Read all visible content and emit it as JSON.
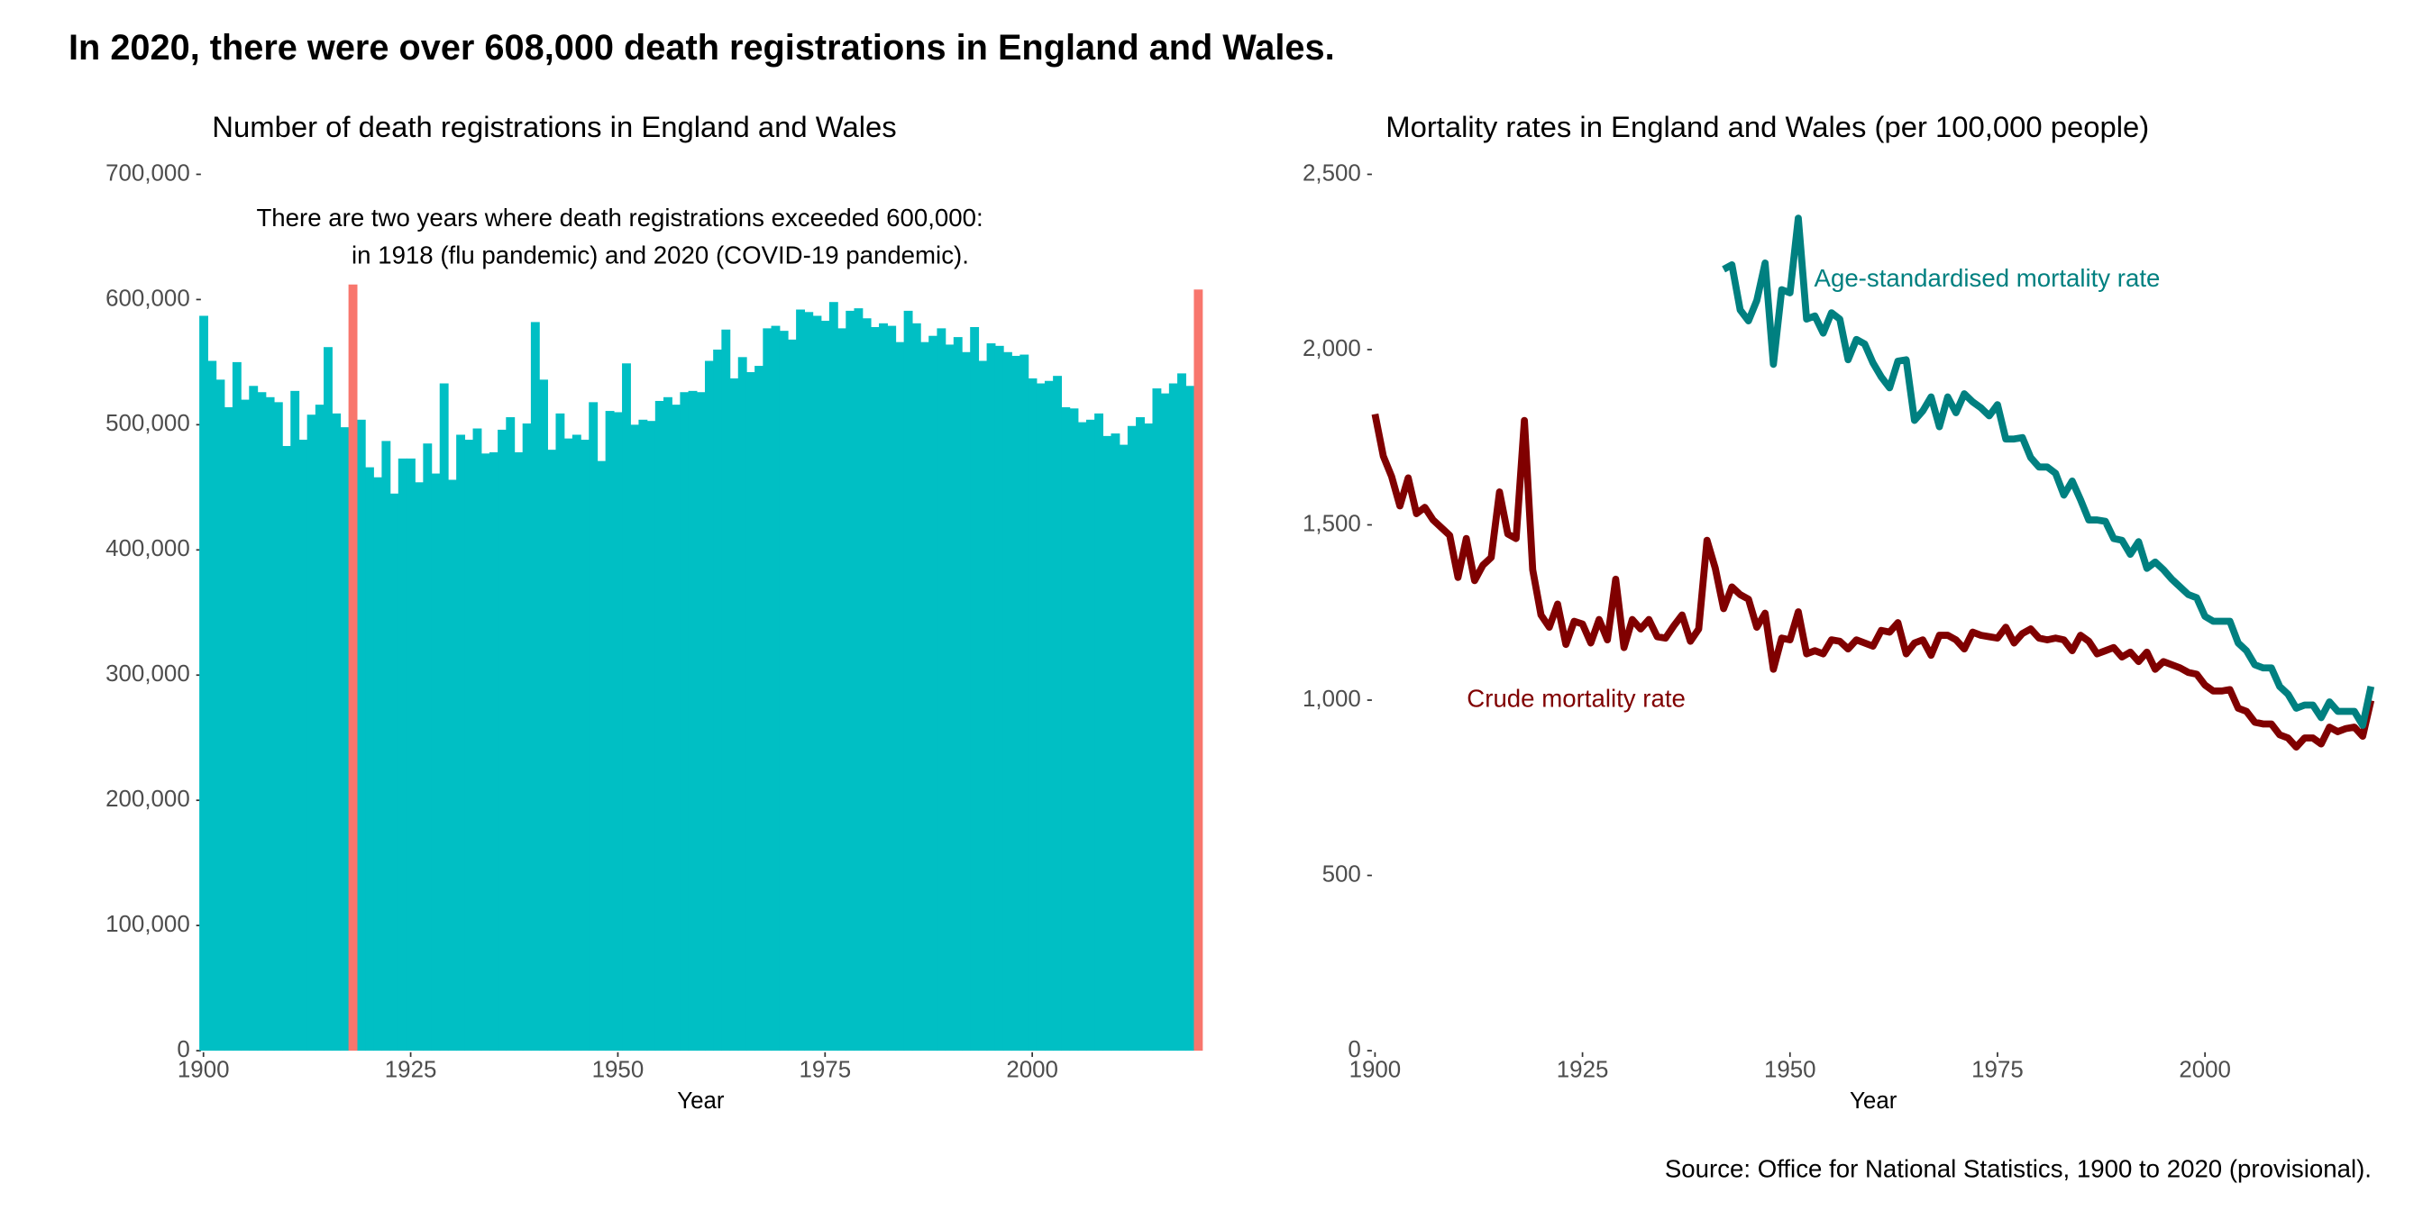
{
  "title": "In 2020, there were over 608,000 death registrations in England and Wales.",
  "source": "Source: Office for National Statistics, 1900 to 2020 (provisional).",
  "chart_data": [
    {
      "type": "bar",
      "title": "Number of death registrations in England and Wales",
      "annotation": [
        "There are two years where death registrations exceeded 600,000:",
        "in 1918 (flu pandemic) and 2020 (COVID-19 pandemic)."
      ],
      "xlabel": "Year",
      "x": [
        1900,
        1901,
        1902,
        1903,
        1904,
        1905,
        1906,
        1907,
        1908,
        1909,
        1910,
        1911,
        1912,
        1913,
        1914,
        1915,
        1916,
        1917,
        1918,
        1919,
        1920,
        1921,
        1922,
        1923,
        1924,
        1925,
        1926,
        1927,
        1928,
        1929,
        1930,
        1931,
        1932,
        1933,
        1934,
        1935,
        1936,
        1937,
        1938,
        1939,
        1940,
        1941,
        1942,
        1943,
        1944,
        1945,
        1946,
        1947,
        1948,
        1949,
        1950,
        1951,
        1952,
        1953,
        1954,
        1955,
        1956,
        1957,
        1958,
        1959,
        1960,
        1961,
        1962,
        1963,
        1964,
        1965,
        1966,
        1967,
        1968,
        1969,
        1970,
        1971,
        1972,
        1973,
        1974,
        1975,
        1976,
        1977,
        1978,
        1979,
        1980,
        1981,
        1982,
        1983,
        1984,
        1985,
        1986,
        1987,
        1988,
        1989,
        1990,
        1991,
        1992,
        1993,
        1994,
        1995,
        1996,
        1997,
        1998,
        1999,
        2000,
        2001,
        2002,
        2003,
        2004,
        2005,
        2006,
        2007,
        2008,
        2009,
        2010,
        2011,
        2012,
        2013,
        2014,
        2015,
        2016,
        2017,
        2018,
        2019,
        2020
      ],
      "values": [
        587000,
        551000,
        536000,
        514000,
        550000,
        520000,
        531000,
        526000,
        522000,
        518000,
        483000,
        527000,
        488000,
        508000,
        516000,
        562000,
        509000,
        498000,
        612000,
        504000,
        466000,
        458000,
        487000,
        445000,
        473000,
        473000,
        454000,
        485000,
        461000,
        533000,
        456000,
        492000,
        488000,
        497000,
        477000,
        478000,
        496000,
        506000,
        478000,
        501000,
        582000,
        536000,
        480000,
        509000,
        489000,
        492000,
        488000,
        518000,
        471000,
        511000,
        510000,
        549000,
        500000,
        504000,
        503000,
        519000,
        522000,
        516000,
        526000,
        527000,
        526000,
        551000,
        560000,
        576000,
        537000,
        554000,
        542000,
        547000,
        577000,
        579000,
        575000,
        568000,
        592000,
        590000,
        587000,
        583000,
        598000,
        577000,
        591000,
        593000,
        585000,
        578000,
        581000,
        579000,
        566000,
        591000,
        581000,
        566000,
        571000,
        577000,
        564000,
        570000,
        558000,
        578000,
        551000,
        565000,
        563000,
        558000,
        555000,
        556000,
        537000,
        533000,
        535000,
        539000,
        514000,
        513000,
        502000,
        504000,
        509000,
        491000,
        493000,
        484000,
        499000,
        506000,
        501000,
        529000,
        525000,
        533000,
        541000,
        531000,
        608000
      ],
      "color": "#00bfc4",
      "highlight": {
        "x": [
          1918,
          2020
        ],
        "color": "#f8766d"
      },
      "xlim": [
        1899.5,
        2020.5
      ],
      "xticks": [
        1900,
        1925,
        1950,
        1975,
        2000
      ],
      "ylim": [
        0,
        700000
      ],
      "yticks": [
        0,
        {
          "value": 100000,
          "label": "100,000"
        },
        {
          "value": 200000,
          "label": "200,000"
        },
        {
          "value": 300000,
          "label": "300,000"
        },
        {
          "value": 400000,
          "label": "400,000"
        },
        {
          "value": 500000,
          "label": "500,000"
        },
        {
          "value": 600000,
          "label": "600,000"
        },
        {
          "value": 700000,
          "label": "700,000"
        }
      ],
      "grid": false
    },
    {
      "type": "line",
      "title": "Mortality rates in England and Wales (per 100,000 people)",
      "xlabel": "Year",
      "x": [
        1900,
        1901,
        1902,
        1903,
        1904,
        1905,
        1906,
        1907,
        1908,
        1909,
        1910,
        1911,
        1912,
        1913,
        1914,
        1915,
        1916,
        1917,
        1918,
        1919,
        1920,
        1921,
        1922,
        1923,
        1924,
        1925,
        1926,
        1927,
        1928,
        1929,
        1930,
        1931,
        1932,
        1933,
        1934,
        1935,
        1936,
        1937,
        1938,
        1939,
        1940,
        1941,
        1942,
        1943,
        1944,
        1945,
        1946,
        1947,
        1948,
        1949,
        1950,
        1951,
        1952,
        1953,
        1954,
        1955,
        1956,
        1957,
        1958,
        1959,
        1960,
        1961,
        1962,
        1963,
        1964,
        1965,
        1966,
        1967,
        1968,
        1969,
        1970,
        1971,
        1972,
        1973,
        1974,
        1975,
        1976,
        1977,
        1978,
        1979,
        1980,
        1981,
        1982,
        1983,
        1984,
        1985,
        1986,
        1987,
        1988,
        1989,
        1990,
        1991,
        1992,
        1993,
        1994,
        1995,
        1996,
        1997,
        1998,
        1999,
        2000,
        2001,
        2002,
        2003,
        2004,
        2005,
        2006,
        2007,
        2008,
        2009,
        2010,
        2011,
        2012,
        2013,
        2014,
        2015,
        2016,
        2017,
        2018,
        2019,
        2020
      ],
      "series": [
        {
          "name": "Crude mortality rate",
          "color": "#800000",
          "values": [
            1816,
            1696,
            1638,
            1554,
            1634,
            1532,
            1550,
            1514,
            1492,
            1470,
            1350,
            1461,
            1341,
            1385,
            1407,
            1594,
            1474,
            1461,
            1798,
            1372,
            1243,
            1208,
            1274,
            1159,
            1225,
            1217,
            1163,
            1230,
            1172,
            1345,
            1150,
            1230,
            1203,
            1230,
            1181,
            1177,
            1212,
            1243,
            1168,
            1203,
            1456,
            1376,
            1261,
            1323,
            1301,
            1288,
            1208,
            1248,
            1088,
            1177,
            1172,
            1252,
            1132,
            1141,
            1132,
            1172,
            1168,
            1146,
            1172,
            1163,
            1154,
            1199,
            1194,
            1221,
            1132,
            1163,
            1172,
            1128,
            1185,
            1185,
            1172,
            1146,
            1194,
            1185,
            1181,
            1177,
            1208,
            1163,
            1190,
            1203,
            1177,
            1172,
            1177,
            1172,
            1141,
            1185,
            1168,
            1132,
            1141,
            1150,
            1123,
            1137,
            1110,
            1137,
            1088,
            1110,
            1101,
            1092,
            1079,
            1074,
            1043,
            1026,
            1026,
            1030,
            977,
            968,
            937,
            932,
            932,
            901,
            892,
            866,
            892,
            892,
            875,
            923,
            910,
            919,
            923,
            897,
            999
          ]
        },
        {
          "name": "Age-standardised mortality rate",
          "color": "#008080",
          "values": [
            null,
            null,
            null,
            null,
            null,
            null,
            null,
            null,
            null,
            null,
            null,
            null,
            null,
            null,
            null,
            null,
            null,
            null,
            null,
            null,
            null,
            null,
            null,
            null,
            null,
            null,
            null,
            null,
            null,
            null,
            null,
            null,
            null,
            null,
            null,
            null,
            null,
            null,
            null,
            null,
            null,
            null,
            2229,
            2242,
            2113,
            2082,
            2140,
            2247,
            1958,
            2171,
            2162,
            2375,
            2087,
            2096,
            2047,
            2105,
            2087,
            1971,
            2029,
            2016,
            1962,
            1922,
            1891,
            1967,
            1971,
            1798,
            1825,
            1865,
            1780,
            1865,
            1820,
            1874,
            1851,
            1834,
            1811,
            1843,
            1745,
            1745,
            1749,
            1692,
            1665,
            1665,
            1647,
            1585,
            1625,
            1572,
            1514,
            1514,
            1510,
            1461,
            1456,
            1416,
            1452,
            1376,
            1394,
            1372,
            1345,
            1323,
            1301,
            1292,
            1239,
            1225,
            1225,
            1225,
            1163,
            1141,
            1101,
            1092,
            1092,
            1039,
            1017,
            977,
            986,
            986,
            950,
            995,
            968,
            968,
            968,
            928,
            1039
          ]
        }
      ],
      "xlim": [
        1900,
        2020
      ],
      "xticks": [
        1900,
        1925,
        1950,
        1975,
        2000
      ],
      "ylim": [
        0,
        2500
      ],
      "yticks": [
        0,
        500,
        {
          "value": 1000,
          "label": "1,000"
        },
        {
          "value": 1500,
          "label": "1,500"
        },
        {
          "value": 2000,
          "label": "2,000"
        },
        {
          "value": 2500,
          "label": "2,500"
        }
      ],
      "grid": false
    }
  ]
}
